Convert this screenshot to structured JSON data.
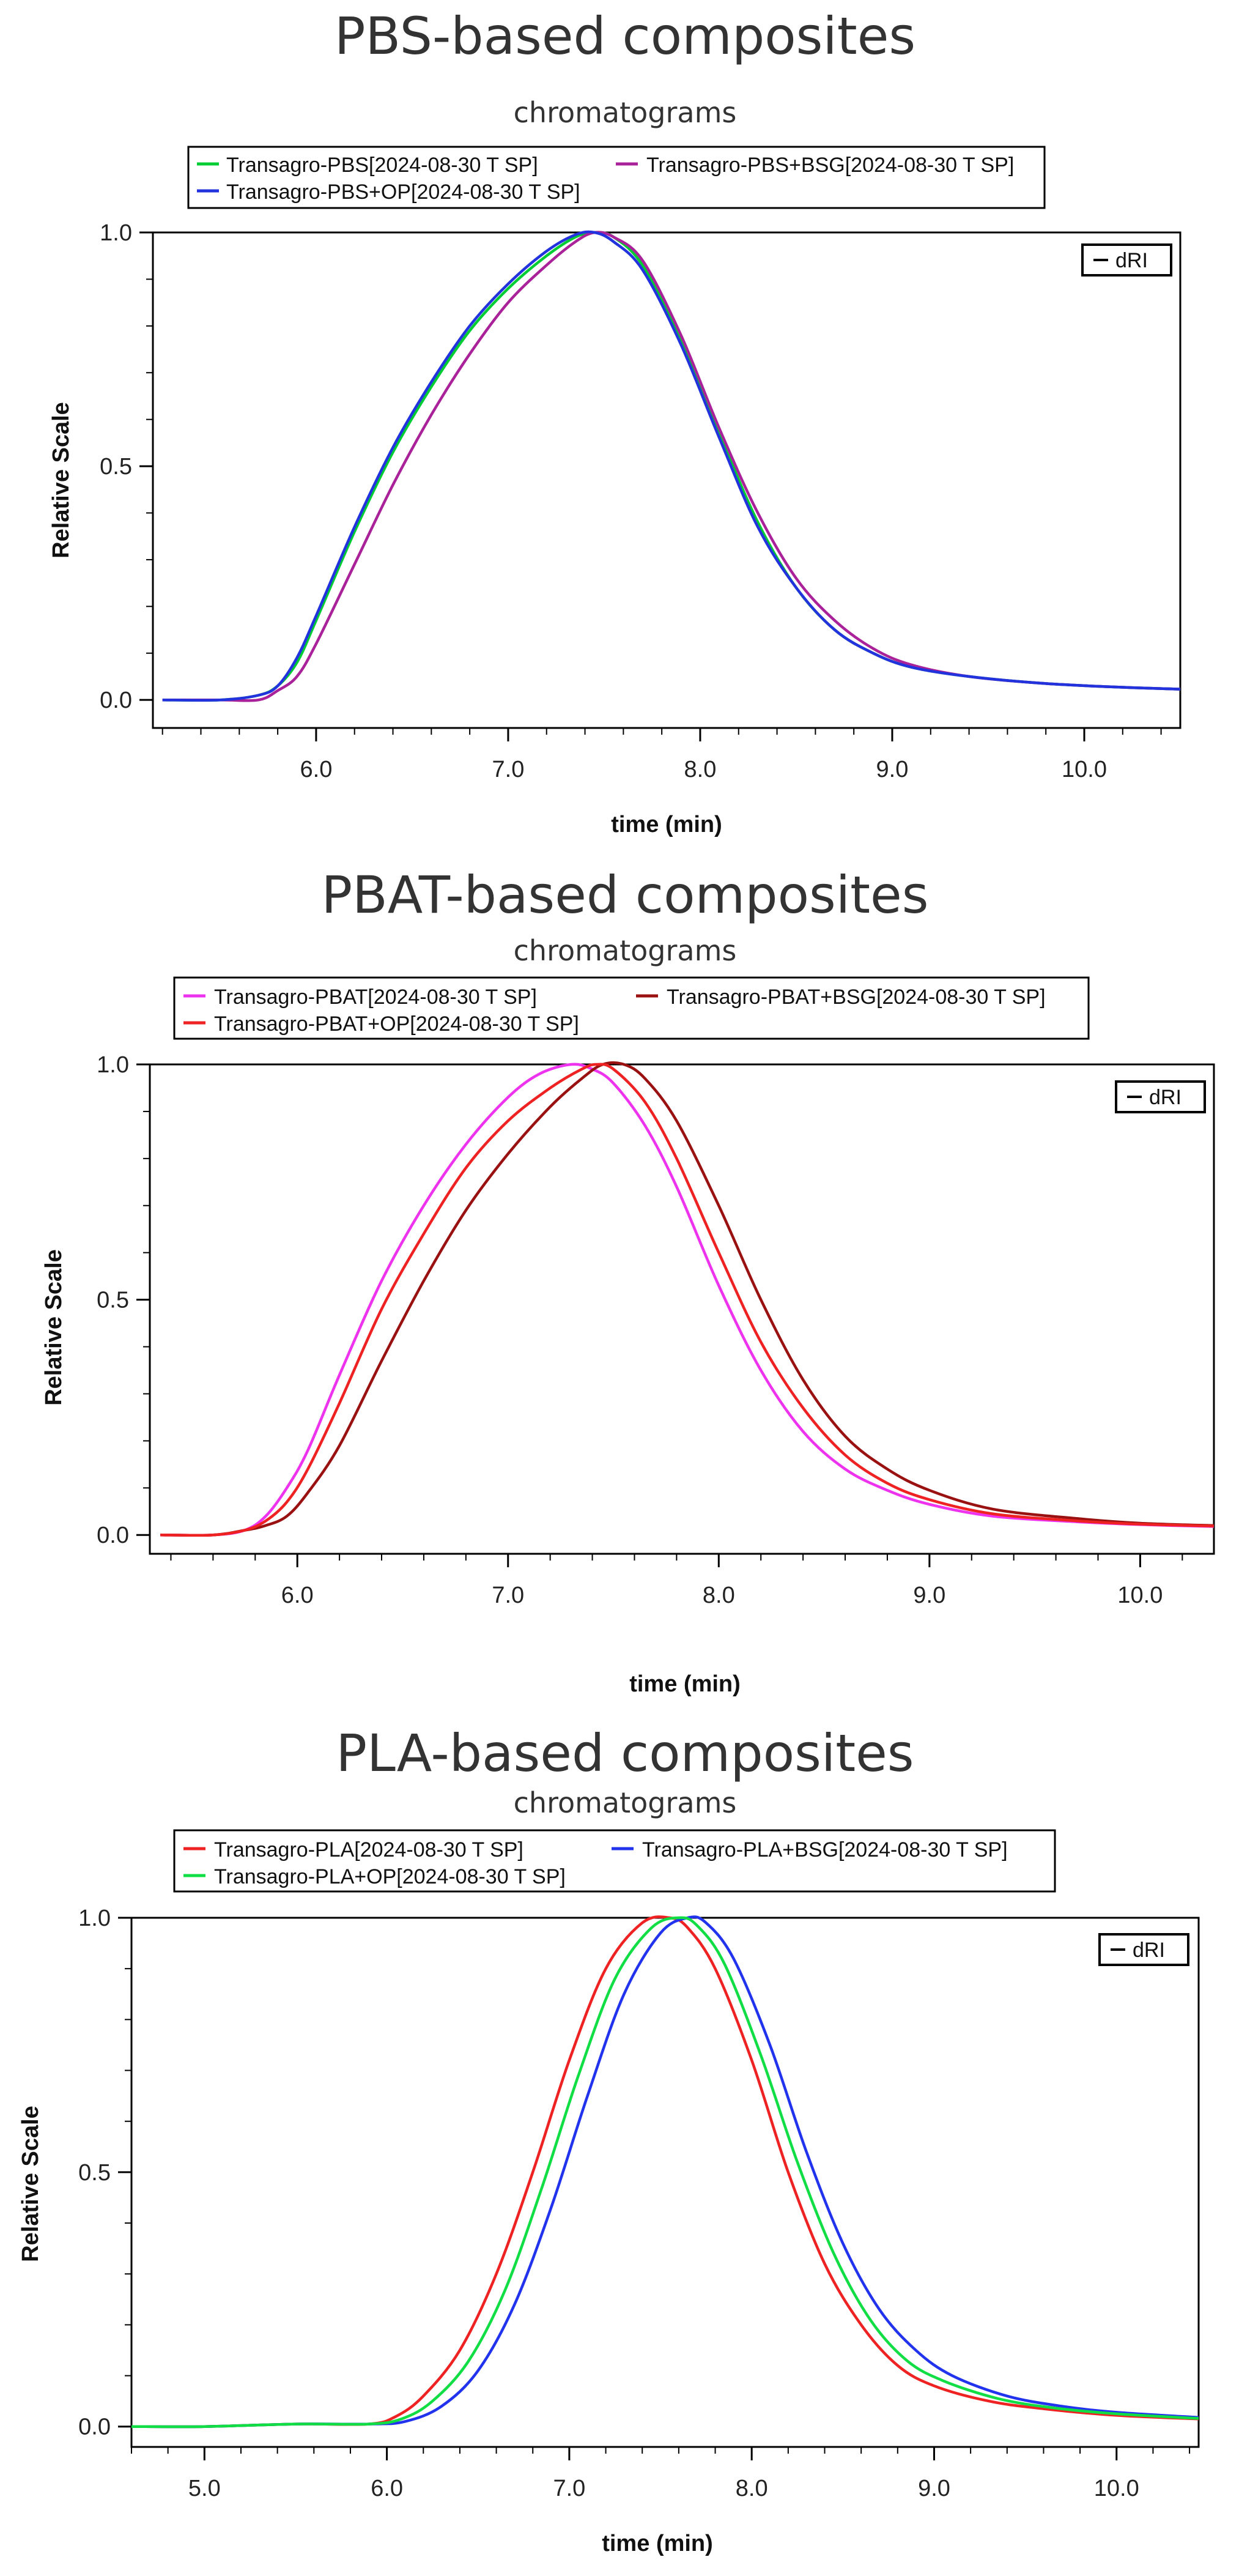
{
  "chart_data": [
    {
      "type": "line",
      "title": "PBS-based composites",
      "subtitle": "chromatograms",
      "xlabel": "time (min)",
      "ylabel": "Relative Scale",
      "xlim": [
        5.15,
        10.5
      ],
      "ylim": [
        -0.06,
        1.0
      ],
      "xticks": [
        6.0,
        7.0,
        8.0,
        9.0,
        10.0
      ],
      "xtick_labels": [
        "6.0",
        "7.0",
        "8.0",
        "9.0",
        "10.0"
      ],
      "yticks": [
        0.0,
        0.5,
        1.0
      ],
      "ytick_labels": [
        "0.0",
        "0.5",
        "1.0"
      ],
      "detector_label": "dRI",
      "grid": false,
      "legend_position": "top-center, above plot",
      "series": [
        {
          "name": "Transagro-PBS[2024-08-30 T SP]",
          "color": "#00cc33",
          "x": [
            5.2,
            5.5,
            5.7,
            5.8,
            5.9,
            6.0,
            6.2,
            6.4,
            6.6,
            6.8,
            7.0,
            7.2,
            7.35,
            7.45,
            7.55,
            7.7,
            7.9,
            8.1,
            8.3,
            8.5,
            8.7,
            8.9,
            9.1,
            9.4,
            9.8,
            10.2,
            10.5
          ],
          "y": [
            0.0,
            0.0,
            0.01,
            0.03,
            0.08,
            0.17,
            0.36,
            0.53,
            0.67,
            0.79,
            0.88,
            0.95,
            0.99,
            1.0,
            0.99,
            0.93,
            0.77,
            0.57,
            0.38,
            0.24,
            0.15,
            0.1,
            0.07,
            0.05,
            0.035,
            0.027,
            0.023
          ]
        },
        {
          "name": "Transagro-PBS+BSG[2024-08-30 T SP]",
          "color": "#aa2299",
          "x": [
            5.2,
            5.5,
            5.7,
            5.8,
            5.9,
            6.0,
            6.2,
            6.4,
            6.6,
            6.8,
            7.0,
            7.2,
            7.35,
            7.45,
            7.55,
            7.7,
            7.9,
            8.1,
            8.3,
            8.5,
            8.7,
            8.9,
            9.1,
            9.4,
            9.8,
            10.2,
            10.5
          ],
          "y": [
            0.0,
            0.0,
            0.0,
            0.02,
            0.05,
            0.12,
            0.29,
            0.46,
            0.61,
            0.74,
            0.85,
            0.93,
            0.98,
            1.0,
            0.99,
            0.94,
            0.78,
            0.58,
            0.4,
            0.26,
            0.17,
            0.11,
            0.075,
            0.05,
            0.035,
            0.027,
            0.023
          ]
        },
        {
          "name": "Transagro-PBS+OP[2024-08-30 T SP]",
          "color": "#2233dd",
          "x": [
            5.2,
            5.5,
            5.7,
            5.8,
            5.9,
            6.0,
            6.2,
            6.4,
            6.6,
            6.8,
            7.0,
            7.2,
            7.35,
            7.45,
            7.55,
            7.7,
            7.9,
            8.1,
            8.3,
            8.5,
            8.7,
            8.9,
            9.1,
            9.4,
            9.8,
            10.2,
            10.5
          ],
          "y": [
            0.0,
            0.0,
            0.01,
            0.03,
            0.09,
            0.18,
            0.37,
            0.54,
            0.68,
            0.8,
            0.89,
            0.96,
            0.995,
            1.0,
            0.98,
            0.92,
            0.76,
            0.56,
            0.37,
            0.24,
            0.15,
            0.1,
            0.07,
            0.05,
            0.035,
            0.027,
            0.023
          ]
        }
      ]
    },
    {
      "type": "line",
      "title": "PBAT-based composites",
      "subtitle": "chromatograms",
      "xlabel": "time (min)",
      "ylabel": "Relative Scale",
      "xlim": [
        5.3,
        10.35
      ],
      "ylim": [
        -0.04,
        1.0
      ],
      "xticks": [
        6.0,
        7.0,
        8.0,
        9.0,
        10.0
      ],
      "xtick_labels": [
        "6.0",
        "7.0",
        "8.0",
        "9.0",
        "10.0"
      ],
      "yticks": [
        0.0,
        0.5,
        1.0
      ],
      "ytick_labels": [
        "0.0",
        "0.5",
        "1.0"
      ],
      "detector_label": "dRI",
      "grid": false,
      "legend_position": "top-center, above plot",
      "series": [
        {
          "name": "Transagro-PBAT[2024-08-30 T SP]",
          "color": "#ee33ee",
          "x": [
            5.35,
            5.6,
            5.75,
            5.85,
            5.95,
            6.05,
            6.2,
            6.4,
            6.6,
            6.8,
            7.0,
            7.15,
            7.3,
            7.4,
            7.5,
            7.65,
            7.8,
            8.0,
            8.2,
            8.4,
            8.6,
            8.8,
            9.0,
            9.3,
            9.7,
            10.0,
            10.35
          ],
          "y": [
            0.0,
            0.0,
            0.01,
            0.04,
            0.1,
            0.18,
            0.34,
            0.54,
            0.7,
            0.83,
            0.93,
            0.98,
            1.0,
            0.99,
            0.96,
            0.87,
            0.74,
            0.53,
            0.35,
            0.22,
            0.14,
            0.095,
            0.065,
            0.04,
            0.028,
            0.022,
            0.018
          ]
        },
        {
          "name": "Transagro-PBAT+BSG[2024-08-30 T SP]",
          "color": "#991111",
          "x": [
            5.35,
            5.6,
            5.75,
            5.85,
            5.95,
            6.05,
            6.2,
            6.4,
            6.6,
            6.8,
            7.0,
            7.2,
            7.35,
            7.45,
            7.55,
            7.65,
            7.8,
            8.0,
            8.2,
            8.4,
            8.6,
            8.8,
            9.0,
            9.3,
            9.7,
            10.0,
            10.35
          ],
          "y": [
            0.0,
            0.0,
            0.01,
            0.02,
            0.04,
            0.09,
            0.19,
            0.37,
            0.54,
            0.69,
            0.81,
            0.91,
            0.97,
            1.0,
            1.0,
            0.97,
            0.88,
            0.7,
            0.5,
            0.33,
            0.21,
            0.14,
            0.095,
            0.055,
            0.035,
            0.025,
            0.02
          ]
        },
        {
          "name": "Transagro-PBAT+OP[2024-08-30 T SP]",
          "color": "#ee2222",
          "x": [
            5.35,
            5.6,
            5.75,
            5.85,
            5.95,
            6.05,
            6.2,
            6.4,
            6.6,
            6.8,
            7.0,
            7.2,
            7.35,
            7.42,
            7.5,
            7.65,
            7.8,
            8.0,
            8.2,
            8.4,
            8.6,
            8.8,
            9.0,
            9.3,
            9.7,
            10.0,
            10.35
          ],
          "y": [
            0.0,
            0.0,
            0.01,
            0.03,
            0.07,
            0.14,
            0.28,
            0.48,
            0.64,
            0.78,
            0.88,
            0.95,
            0.99,
            1.0,
            0.99,
            0.92,
            0.8,
            0.6,
            0.41,
            0.27,
            0.17,
            0.11,
            0.075,
            0.045,
            0.03,
            0.023,
            0.019
          ]
        }
      ]
    },
    {
      "type": "line",
      "title": "PLA-based composites",
      "subtitle": "chromatograms",
      "xlabel": "time (min)",
      "ylabel": "Relative Scale",
      "xlim": [
        4.6,
        10.45
      ],
      "ylim": [
        -0.04,
        1.0
      ],
      "xticks": [
        5.0,
        6.0,
        7.0,
        8.0,
        9.0,
        10.0
      ],
      "xtick_labels": [
        "5.0",
        "6.0",
        "7.0",
        "8.0",
        "9.0",
        "10.0"
      ],
      "yticks": [
        0.0,
        0.5,
        1.0
      ],
      "ytick_labels": [
        "0.0",
        "0.5",
        "1.0"
      ],
      "detector_label": "dRI",
      "grid": false,
      "legend_position": "top-center, above plot",
      "series": [
        {
          "name": "Transagro-PLA[2024-08-30 T SP]",
          "color": "#ee2222",
          "x": [
            4.6,
            5.0,
            5.5,
            5.9,
            6.05,
            6.2,
            6.4,
            6.6,
            6.8,
            7.0,
            7.2,
            7.4,
            7.55,
            7.65,
            7.8,
            8.0,
            8.2,
            8.4,
            8.6,
            8.8,
            9.0,
            9.3,
            9.6,
            10.0,
            10.45
          ],
          "y": [
            0.0,
            0.0,
            0.005,
            0.005,
            0.02,
            0.06,
            0.15,
            0.3,
            0.5,
            0.72,
            0.9,
            0.99,
            1.0,
            0.98,
            0.9,
            0.72,
            0.5,
            0.32,
            0.2,
            0.12,
            0.08,
            0.05,
            0.035,
            0.022,
            0.015
          ]
        },
        {
          "name": "Transagro-PLA+BSG[2024-08-30 T SP]",
          "color": "#2233ee",
          "x": [
            4.6,
            5.0,
            5.5,
            5.9,
            6.1,
            6.3,
            6.5,
            6.7,
            6.9,
            7.1,
            7.3,
            7.5,
            7.65,
            7.75,
            7.9,
            8.1,
            8.3,
            8.5,
            8.7,
            8.9,
            9.1,
            9.4,
            9.7,
            10.0,
            10.45
          ],
          "y": [
            0.0,
            0.0,
            0.005,
            0.005,
            0.01,
            0.04,
            0.11,
            0.24,
            0.43,
            0.65,
            0.85,
            0.97,
            1.0,
            0.99,
            0.92,
            0.75,
            0.54,
            0.36,
            0.23,
            0.15,
            0.1,
            0.06,
            0.04,
            0.028,
            0.018
          ]
        },
        {
          "name": "Transagro-PLA+OP[2024-08-30 T SP]",
          "color": "#11dd44",
          "x": [
            4.6,
            5.0,
            5.5,
            5.9,
            6.08,
            6.25,
            6.45,
            6.65,
            6.85,
            7.05,
            7.25,
            7.45,
            7.6,
            7.7,
            7.85,
            8.05,
            8.25,
            8.45,
            8.65,
            8.85,
            9.05,
            9.35,
            9.65,
            10.0,
            10.45
          ],
          "y": [
            0.0,
            0.0,
            0.005,
            0.005,
            0.015,
            0.05,
            0.13,
            0.27,
            0.47,
            0.69,
            0.88,
            0.98,
            1.0,
            0.985,
            0.91,
            0.73,
            0.52,
            0.34,
            0.21,
            0.13,
            0.09,
            0.055,
            0.037,
            0.025,
            0.016
          ]
        }
      ]
    }
  ]
}
